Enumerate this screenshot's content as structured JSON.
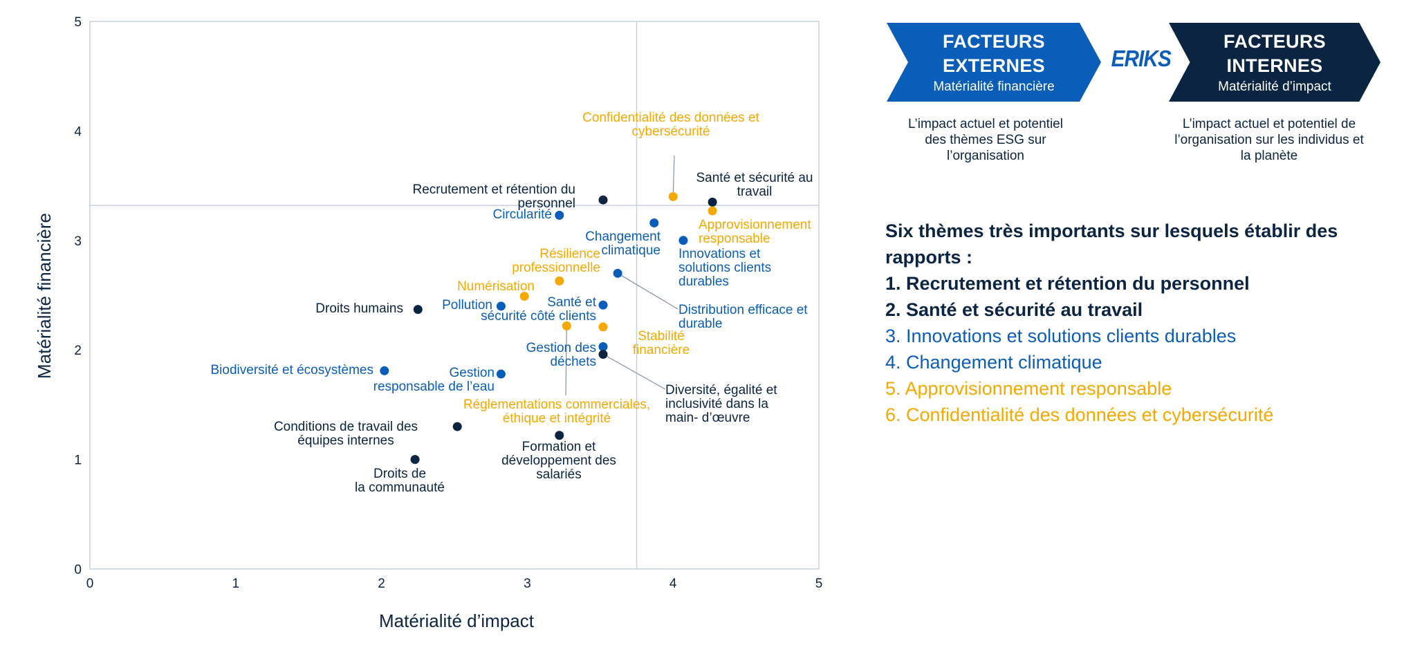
{
  "colors": {
    "dark": "#0b2441",
    "blue": "#0a5db8",
    "orange": "#f5a800",
    "grid": "#c7cfd8"
  },
  "logo": "ERIKS",
  "chevrons": {
    "external": {
      "title": "FACTEURS EXTERNES",
      "subtitle": "Matérialité financière"
    },
    "internal": {
      "title": "FACTEURS INTERNES",
      "subtitle": "Matérialité d’impact"
    }
  },
  "descriptions": {
    "external": "L’impact actuel et potentiel des thèmes ESG sur l’organisation",
    "internal": "L’impact actuel et potentiel de l’organisation sur les individus et la planète"
  },
  "themes": {
    "title": "Six thèmes très importants sur lesquels établir des rapports :",
    "items": [
      {
        "text": "1. Recrutement et rétention du personnel",
        "color": "dark"
      },
      {
        "text": "2. Santé et sécurité au travail",
        "color": "dark"
      },
      {
        "text": "3. Innovations et solutions clients durables",
        "color": "blue"
      },
      {
        "text": "4. Changement climatique",
        "color": "blue"
      },
      {
        "text": "5. Approvisionnement responsable",
        "color": "orange"
      },
      {
        "text": "6. Confidentialité des données et cybersécurité",
        "color": "orange"
      }
    ]
  },
  "chart_data": {
    "type": "scatter",
    "xlabel": "Matérialité d’impact",
    "ylabel": "Matérialité financière",
    "xlim": [
      0,
      5
    ],
    "ylim": [
      0,
      5
    ],
    "xticks": [
      "0",
      "1",
      "2",
      "3",
      "4",
      "5"
    ],
    "yticks": [
      "0",
      "1",
      "2",
      "3",
      "4",
      "5"
    ],
    "threshold_x": 3.75,
    "threshold_y": 3.32,
    "points": [
      {
        "label": "Confidentialité des données et cybersécurité",
        "x": 4.0,
        "y": 3.4,
        "color": "orange"
      },
      {
        "label": "Santé et sécurité au travail",
        "x": 4.27,
        "y": 3.35,
        "color": "dark"
      },
      {
        "label": "Recrutement et rétention du personnel",
        "x": 3.52,
        "y": 3.37,
        "color": "dark"
      },
      {
        "label": "Circularité",
        "x": 3.22,
        "y": 3.23,
        "color": "blue"
      },
      {
        "label": "Approvisionnement responsable",
        "x": 4.27,
        "y": 3.27,
        "color": "orange"
      },
      {
        "label": "Changement climatique",
        "x": 3.87,
        "y": 3.16,
        "color": "blue"
      },
      {
        "label": "Innovations et solutions clients durables",
        "x": 4.07,
        "y": 3.0,
        "color": "blue"
      },
      {
        "label": "Résilience professionnelle",
        "x": 3.22,
        "y": 2.63,
        "color": "orange"
      },
      {
        "label": "Distribution efficace et durable",
        "x": 3.62,
        "y": 2.7,
        "color": "blue"
      },
      {
        "label": "Numérisation",
        "x": 2.98,
        "y": 2.49,
        "color": "orange"
      },
      {
        "label": "Pollution",
        "x": 2.82,
        "y": 2.4,
        "color": "blue"
      },
      {
        "label": "Santé et sécurité côté clients",
        "x": 3.52,
        "y": 2.41,
        "color": "blue"
      },
      {
        "label": "Droits humains",
        "x": 2.25,
        "y": 2.37,
        "color": "dark"
      },
      {
        "label": "Réglementations commerciales, éthique et intégrité",
        "x": 3.27,
        "y": 2.22,
        "color": "orange"
      },
      {
        "label": "Stabilité financière",
        "x": 3.52,
        "y": 2.21,
        "color": "orange"
      },
      {
        "label": "Gestion des déchets",
        "x": 3.52,
        "y": 2.03,
        "color": "blue"
      },
      {
        "label": "Diversité, égalité et inclusivité dans la main- d’œuvre",
        "x": 3.52,
        "y": 1.96,
        "color": "dark"
      },
      {
        "label": "Biodiversité et écosystèmes",
        "x": 2.02,
        "y": 1.81,
        "color": "blue"
      },
      {
        "label": "Gestion responsable de l’eau",
        "x": 2.82,
        "y": 1.78,
        "color": "blue"
      },
      {
        "label": "Conditions de travail des équipes internes",
        "x": 2.52,
        "y": 1.3,
        "color": "dark"
      },
      {
        "label": "Formation et développement des salariés",
        "x": 3.22,
        "y": 1.22,
        "color": "dark"
      },
      {
        "label": "Droits de la communauté",
        "x": 2.23,
        "y": 1.0,
        "color": "dark"
      }
    ]
  }
}
